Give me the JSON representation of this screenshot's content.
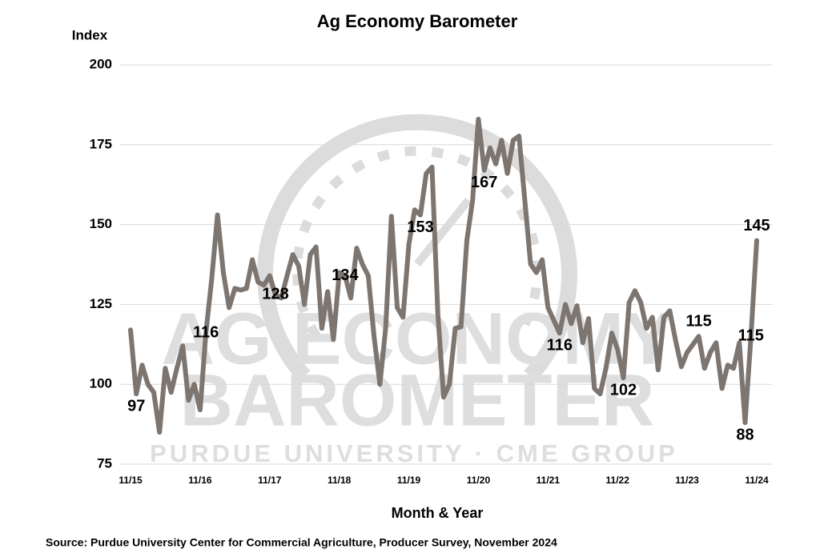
{
  "chart_data": {
    "type": "line",
    "title": "Ag Economy Barometer",
    "y_label": "Index",
    "x_label": "Month & Year",
    "source": "Source: Purdue University Center for Commercial Agriculture, Producer Survey, November 2024",
    "watermark": [
      "AG ECONOMY",
      "BAROMETER",
      "PURDUE UNIVERSITY · CME GROUP"
    ],
    "categories": [
      "11/15",
      null,
      null,
      null,
      null,
      null,
      null,
      null,
      null,
      null,
      null,
      null,
      "11/16",
      null,
      null,
      null,
      null,
      null,
      null,
      null,
      null,
      null,
      null,
      null,
      "11/17",
      null,
      null,
      null,
      null,
      null,
      null,
      null,
      null,
      null,
      null,
      null,
      "11/18",
      null,
      null,
      null,
      null,
      null,
      null,
      null,
      null,
      null,
      null,
      null,
      "11/19",
      null,
      null,
      null,
      null,
      null,
      null,
      null,
      null,
      null,
      null,
      null,
      "11/20",
      null,
      null,
      null,
      null,
      null,
      null,
      null,
      null,
      null,
      null,
      null,
      "11/21",
      null,
      null,
      null,
      null,
      null,
      null,
      null,
      null,
      null,
      null,
      null,
      "11/22",
      null,
      null,
      null,
      null,
      null,
      null,
      null,
      null,
      null,
      null,
      null,
      "11/23",
      null,
      null,
      null,
      null,
      null,
      null,
      null,
      null,
      null,
      null,
      null,
      "11/24"
    ],
    "values": [
      117,
      97,
      106,
      100,
      97.5,
      85,
      105,
      97.5,
      105,
      112,
      95,
      100,
      92,
      116,
      133,
      153,
      135,
      124,
      130,
      129.5,
      130,
      139,
      132,
      131,
      134,
      128,
      127,
      134,
      140.6,
      137,
      125,
      140.6,
      143,
      117.5,
      129,
      114,
      135,
      134,
      127,
      142.6,
      137.6,
      134,
      115,
      100,
      117.5,
      152.6,
      124,
      121,
      143.8,
      154.6,
      153,
      166,
      168,
      122,
      96,
      100,
      117.5,
      118,
      145,
      157.6,
      183,
      167,
      174,
      169,
      176.4,
      166,
      176.4,
      177.7,
      157.6,
      137.6,
      135,
      139,
      124,
      120,
      116,
      125,
      119,
      124.6,
      113,
      120.6,
      98.7,
      97,
      105,
      116,
      111,
      102,
      125.6,
      129.3,
      125.6,
      117.5,
      121,
      104.5,
      121,
      123,
      113.8,
      105.5,
      110,
      112.5,
      115,
      105,
      110,
      113,
      98.7,
      106,
      105,
      113,
      88,
      115,
      145
    ],
    "value_labels": [
      null,
      "97",
      null,
      null,
      null,
      null,
      null,
      null,
      null,
      null,
      null,
      null,
      null,
      "116",
      null,
      null,
      null,
      null,
      null,
      null,
      null,
      null,
      null,
      null,
      null,
      "128",
      null,
      null,
      null,
      null,
      null,
      null,
      null,
      null,
      null,
      null,
      null,
      "134",
      null,
      null,
      null,
      null,
      null,
      null,
      null,
      null,
      null,
      null,
      null,
      null,
      "153",
      null,
      null,
      null,
      null,
      null,
      null,
      null,
      null,
      null,
      null,
      "167",
      null,
      null,
      null,
      null,
      null,
      null,
      null,
      null,
      null,
      null,
      null,
      null,
      "116",
      null,
      null,
      null,
      null,
      null,
      null,
      null,
      null,
      null,
      null,
      "102",
      null,
      null,
      null,
      null,
      null,
      null,
      null,
      null,
      null,
      null,
      null,
      null,
      "115",
      null,
      null,
      null,
      null,
      null,
      null,
      null,
      "88",
      "115",
      "145"
    ],
    "color": "#7d756f",
    "ylim": [
      75,
      200
    ],
    "yticks": [
      75,
      100,
      125,
      150,
      175,
      200
    ],
    "grid": true
  }
}
